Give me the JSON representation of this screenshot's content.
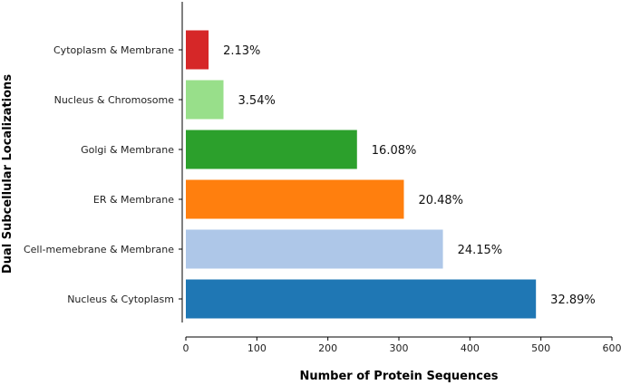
{
  "chart_data": {
    "type": "bar",
    "orientation": "horizontal",
    "xlabel": "Number of Protein Sequences",
    "ylabel": "Dual Subcellular Localizations",
    "xlim": [
      0,
      600
    ],
    "xticks": [
      0,
      100,
      200,
      300,
      400,
      500,
      600
    ],
    "grid": false,
    "categories": [
      "Nucleus & Cytoplasm",
      "Cell-memebrane & Membrane",
      "ER & Membrane",
      "Golgi & Membrane",
      "Nucleus & Chromosome",
      "Cytoplasm & Membrane"
    ],
    "values": [
      493,
      362,
      307,
      241,
      53,
      32
    ],
    "labels": [
      "32.89%",
      "24.15%",
      "20.48%",
      "16.08%",
      "3.54%",
      "2.13%"
    ],
    "colors": [
      "#1f77b4",
      "#aec7e8",
      "#ff7f0e",
      "#2ca02c",
      "#98df8a",
      "#d62728"
    ]
  }
}
